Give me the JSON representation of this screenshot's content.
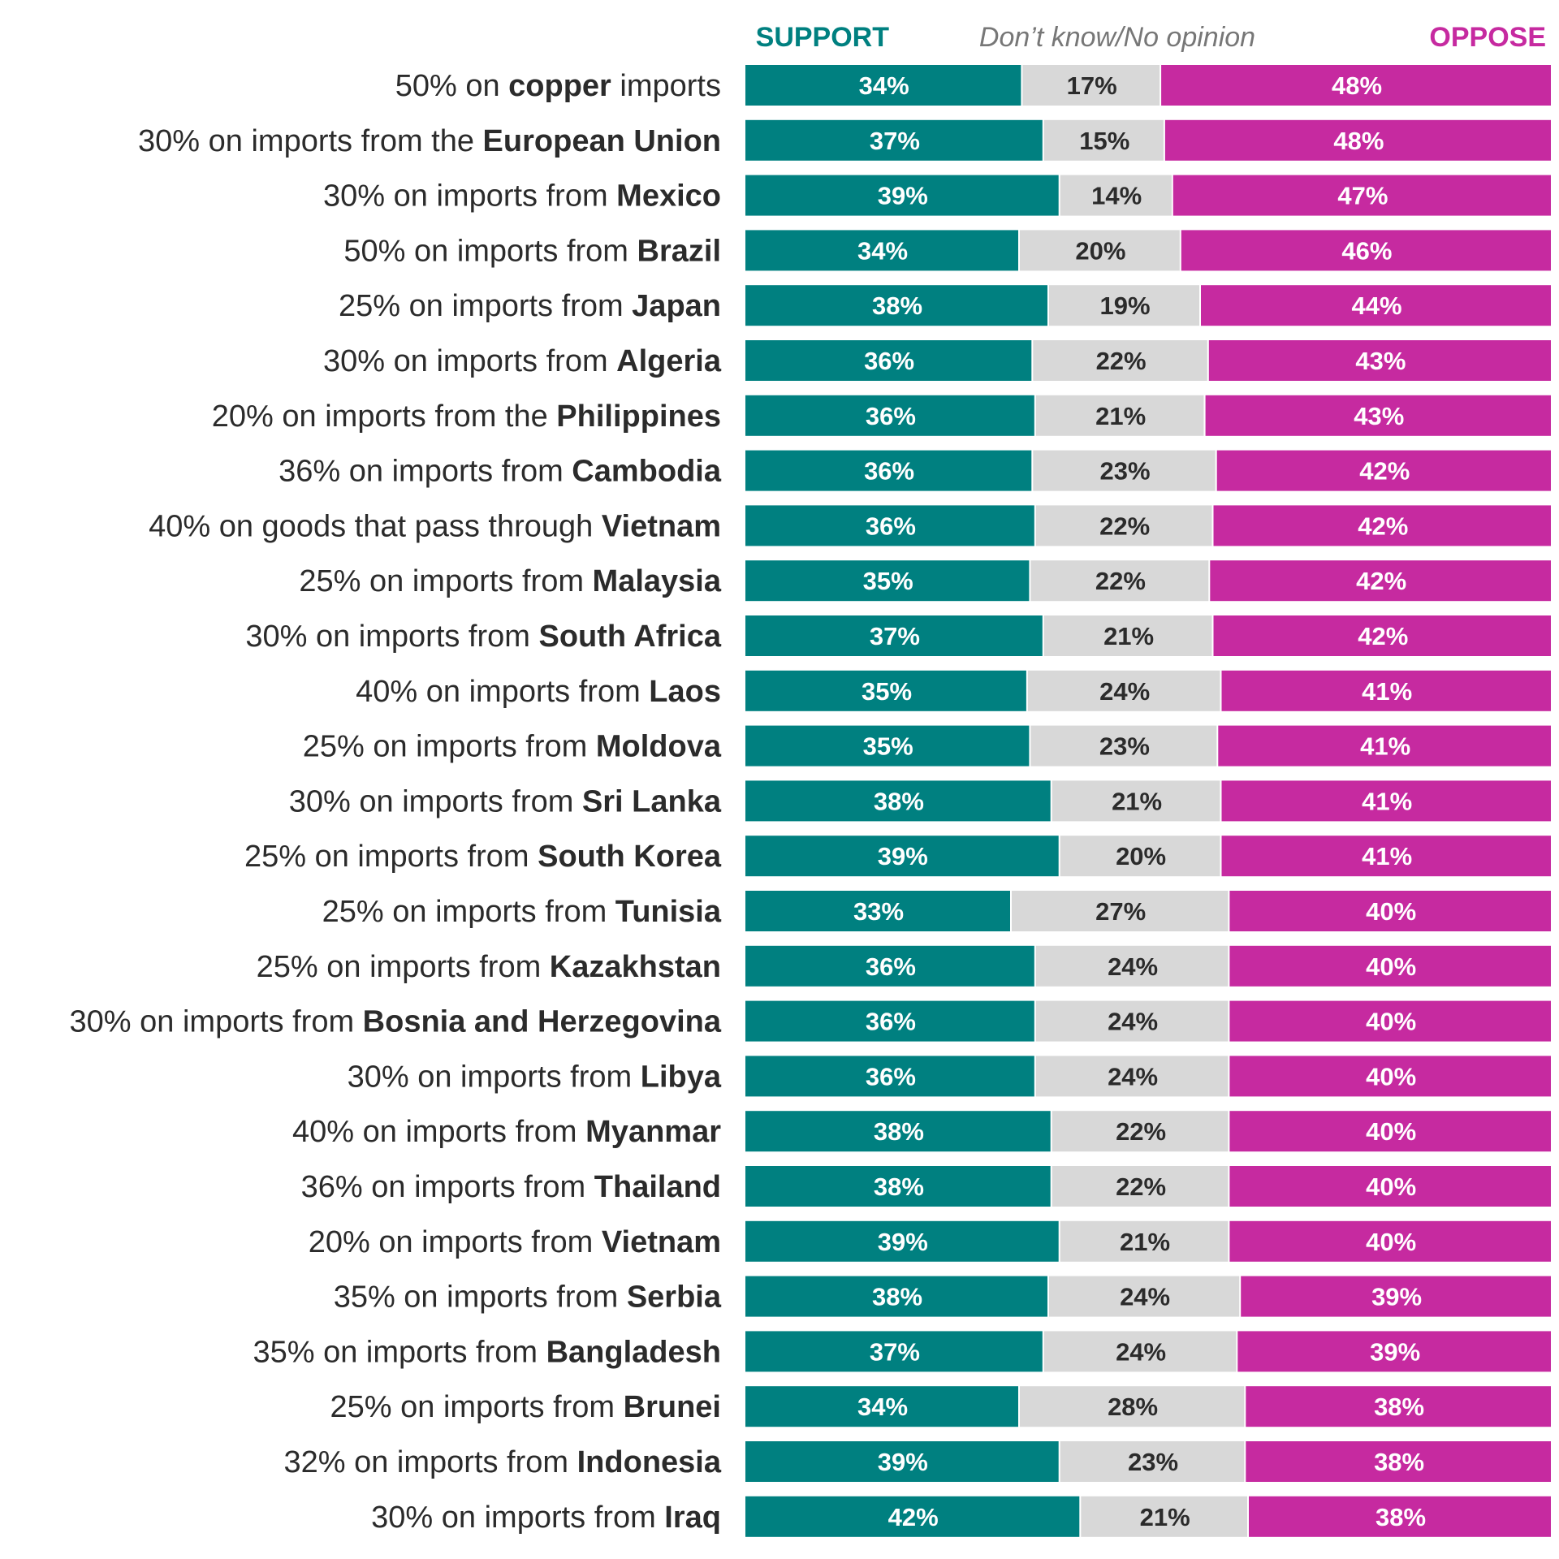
{
  "colors": {
    "support": "#008080",
    "dont_know": "#d8d8d8",
    "oppose": "#c62aa0",
    "dont_know_header": "#777777",
    "label_text": "#2b2b2b",
    "value_on_color": "#ffffff",
    "value_on_gray": "#2b2b2b"
  },
  "chart_data": {
    "type": "bar",
    "orientation": "horizontal",
    "stacked": true,
    "unit": "%",
    "headers": {
      "support": "SUPPORT",
      "dont_know": "Don’t know/No opinion",
      "oppose": "OPPOSE"
    },
    "categories": [
      {
        "prefix": "50% on ",
        "bold": "copper",
        "suffix": " imports"
      },
      {
        "prefix": "30% on imports from the ",
        "bold": "European Union",
        "suffix": ""
      },
      {
        "prefix": "30% on imports from ",
        "bold": "Mexico",
        "suffix": ""
      },
      {
        "prefix": "50% on imports from ",
        "bold": "Brazil",
        "suffix": ""
      },
      {
        "prefix": "25% on imports from ",
        "bold": "Japan",
        "suffix": ""
      },
      {
        "prefix": "30% on imports from ",
        "bold": "Algeria",
        "suffix": ""
      },
      {
        "prefix": "20% on imports from the ",
        "bold": "Philippines",
        "suffix": ""
      },
      {
        "prefix": "36% on imports from ",
        "bold": "Cambodia",
        "suffix": ""
      },
      {
        "prefix": "40% on goods that pass through ",
        "bold": "Vietnam",
        "suffix": ""
      },
      {
        "prefix": "25% on imports from ",
        "bold": "Malaysia",
        "suffix": ""
      },
      {
        "prefix": "30% on imports from ",
        "bold": "South Africa",
        "suffix": ""
      },
      {
        "prefix": "40% on imports from ",
        "bold": "Laos",
        "suffix": ""
      },
      {
        "prefix": "25% on imports from ",
        "bold": "Moldova",
        "suffix": ""
      },
      {
        "prefix": "30% on imports from ",
        "bold": "Sri Lanka",
        "suffix": ""
      },
      {
        "prefix": "25% on imports from ",
        "bold": "South Korea",
        "suffix": ""
      },
      {
        "prefix": "25% on imports from ",
        "bold": "Tunisia",
        "suffix": ""
      },
      {
        "prefix": "25% on imports from ",
        "bold": "Kazakhstan",
        "suffix": ""
      },
      {
        "prefix": "30% on imports from ",
        "bold": "Bosnia and Herzegovina",
        "suffix": ""
      },
      {
        "prefix": "30% on imports from ",
        "bold": "Libya",
        "suffix": ""
      },
      {
        "prefix": "40% on imports from ",
        "bold": "Myanmar",
        "suffix": ""
      },
      {
        "prefix": "36% on imports from ",
        "bold": "Thailand",
        "suffix": ""
      },
      {
        "prefix": "20% on imports from ",
        "bold": "Vietnam",
        "suffix": ""
      },
      {
        "prefix": "35% on imports from ",
        "bold": "Serbia",
        "suffix": ""
      },
      {
        "prefix": "35% on imports from ",
        "bold": "Bangladesh",
        "suffix": ""
      },
      {
        "prefix": "25% on imports from ",
        "bold": "Brunei",
        "suffix": ""
      },
      {
        "prefix": "32% on imports from ",
        "bold": "Indonesia",
        "suffix": ""
      },
      {
        "prefix": "30% on imports from ",
        "bold": "Iraq",
        "suffix": ""
      }
    ],
    "series": [
      {
        "name": "SUPPORT",
        "values": [
          34,
          37,
          39,
          34,
          38,
          36,
          36,
          36,
          36,
          35,
          37,
          35,
          35,
          38,
          39,
          33,
          36,
          36,
          36,
          38,
          38,
          39,
          38,
          37,
          34,
          39,
          42
        ]
      },
      {
        "name": "Don’t know/No opinion",
        "values": [
          17,
          15,
          14,
          20,
          19,
          22,
          21,
          23,
          22,
          22,
          21,
          24,
          23,
          21,
          20,
          27,
          24,
          24,
          24,
          22,
          22,
          21,
          24,
          24,
          28,
          23,
          21
        ]
      },
      {
        "name": "OPPOSE",
        "values": [
          48,
          48,
          47,
          46,
          44,
          43,
          43,
          42,
          42,
          42,
          42,
          41,
          41,
          41,
          41,
          40,
          40,
          40,
          40,
          40,
          40,
          40,
          39,
          39,
          38,
          38,
          38
        ]
      }
    ]
  }
}
